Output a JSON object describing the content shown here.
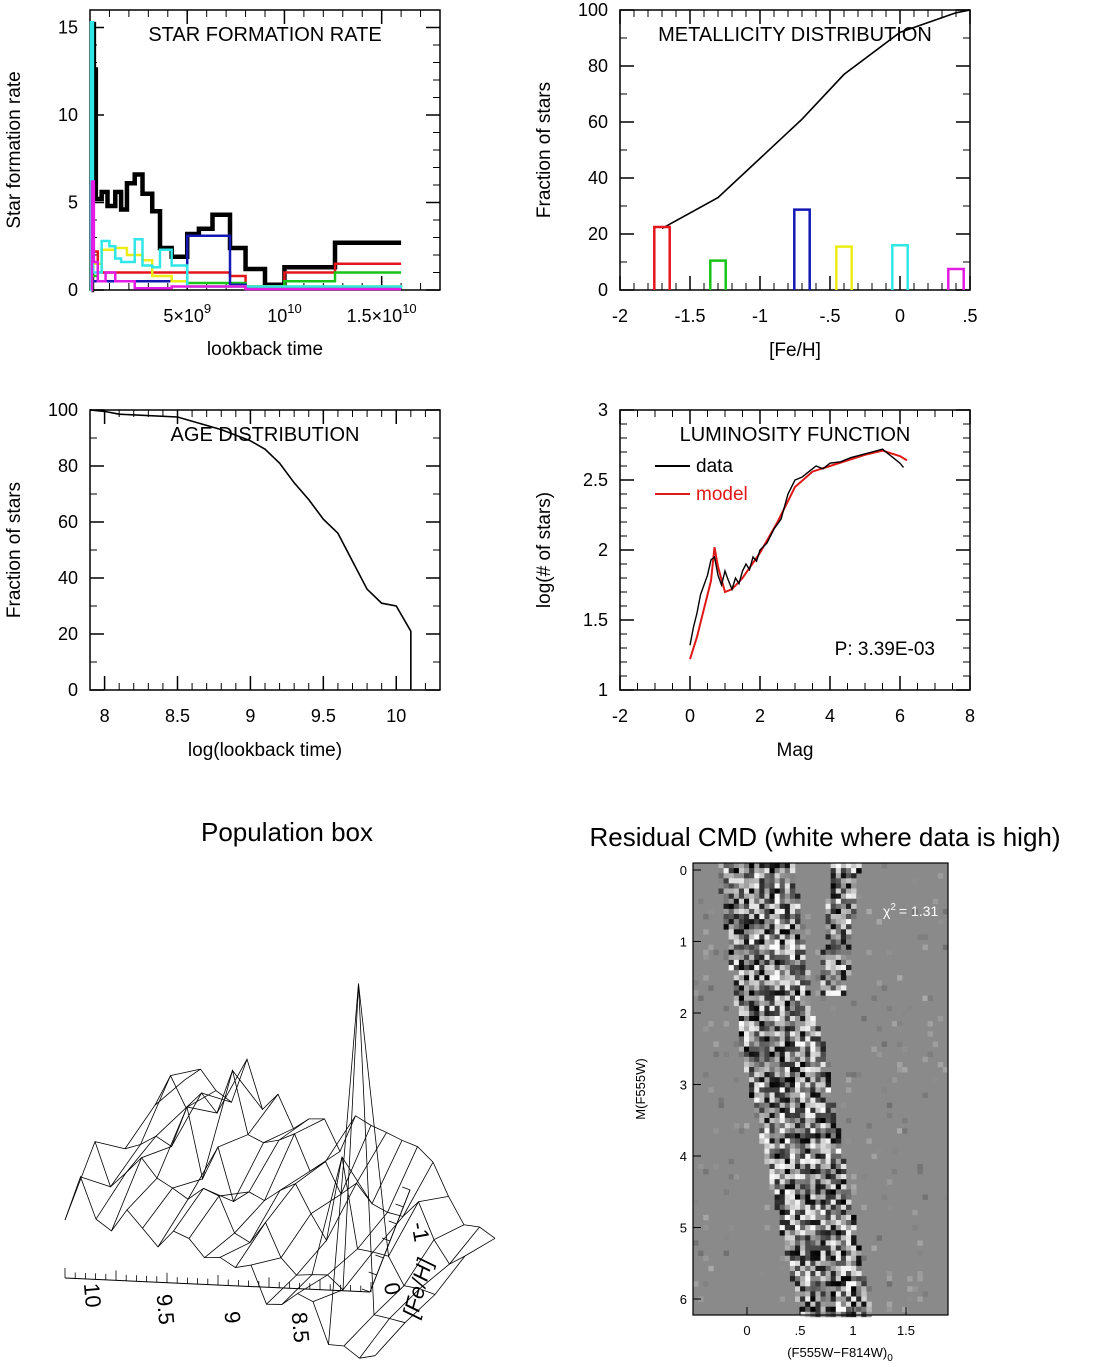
{
  "colors": {
    "black": "#000000",
    "red": "#e4161c",
    "green": "#17c417",
    "blue": "#1419b4",
    "yellow": "#ecec16",
    "cyan": "#30e6e6",
    "magenta": "#e31ce3",
    "model": "#e01818"
  },
  "chart_data": [
    {
      "type": "line",
      "id": "sfr",
      "title": "STAR FORMATION RATE",
      "xlabel": "lookback time",
      "ylabel": "Star formation rate",
      "xlim": [
        0,
        18000000000
      ],
      "ylim": [
        0,
        16
      ],
      "x_tick_labels": [
        {
          "x": 5000000000,
          "base": "5×10",
          "exp": "9"
        },
        {
          "x": 10000000000,
          "base": "10",
          "exp": "10"
        },
        {
          "x": 15000000000,
          "base": "1.5×10",
          "exp": "10"
        }
      ],
      "y_ticks": [
        0,
        5,
        10,
        15
      ],
      "series": [
        {
          "color": "black",
          "width": 4.5,
          "steps": [
            [
              100000000.0,
              15.2
            ],
            [
              200000000.0,
              12.6
            ],
            [
              300000000.0,
              5.2
            ],
            [
              600000000.0,
              5.6
            ],
            [
              900000000.0,
              4.8
            ],
            [
              1300000000.0,
              5.6
            ],
            [
              1600000000.0,
              4.6
            ],
            [
              1900000000.0,
              6.1
            ],
            [
              2300000000.0,
              6.6
            ],
            [
              2700000000.0,
              5.5
            ],
            [
              3200000000.0,
              4.5
            ],
            [
              3600000000.0,
              2.4
            ],
            [
              4200000000.0,
              1.9
            ],
            [
              5000000000.0,
              3.2
            ],
            [
              5600000000.0,
              3.5
            ],
            [
              6300000000.0,
              4.3
            ],
            [
              7200000000.0,
              2.4
            ],
            [
              8000000000.0,
              1.2
            ],
            [
              9000000000.0,
              0.3
            ],
            [
              10000000000.0,
              1.3
            ],
            [
              12600000000.0,
              2.7
            ],
            [
              16000000000.0,
              2.7
            ]
          ]
        },
        {
          "color": "red",
          "width": 2.5,
          "steps": [
            [
              100000000.0,
              2.2
            ],
            [
              400000000.0,
              1.0
            ],
            [
              6300000000.0,
              1.0
            ],
            [
              7200000000.0,
              0.8
            ],
            [
              8000000000.0,
              0.2
            ],
            [
              10000000000.0,
              1.0
            ],
            [
              12600000000.0,
              1.5
            ],
            [
              16000000000.0,
              1.5
            ]
          ]
        },
        {
          "color": "green",
          "width": 2.5,
          "steps": [
            [
              100000000.0,
              0.8
            ],
            [
              400000000.0,
              0.5
            ],
            [
              5000000000.0,
              0.4
            ],
            [
              8000000000.0,
              0.2
            ],
            [
              10000000000.0,
              0.5
            ],
            [
              12600000000.0,
              1.0
            ],
            [
              16000000000.0,
              1.0
            ]
          ]
        },
        {
          "color": "blue",
          "width": 2.5,
          "steps": [
            [
              100000000.0,
              0.5
            ],
            [
              5000000000.0,
              3.1
            ],
            [
              6300000000.0,
              3.1
            ],
            [
              7200000000.0,
              0.3
            ],
            [
              8000000000.0,
              0.1
            ],
            [
              16000000000.0,
              0.1
            ]
          ]
        },
        {
          "color": "yellow",
          "width": 2.5,
          "steps": [
            [
              100000000.0,
              1.5
            ],
            [
              600000000.0,
              2.3
            ],
            [
              1300000000.0,
              2.4
            ],
            [
              1900000000.0,
              2.0
            ],
            [
              2700000000.0,
              1.7
            ],
            [
              3200000000.0,
              0.8
            ],
            [
              4200000000.0,
              0.5
            ],
            [
              5000000000.0,
              0.2
            ],
            [
              16000000000.0,
              0.1
            ]
          ]
        },
        {
          "color": "cyan",
          "width": 2.5,
          "steps": [
            [
              50000000.0,
              15.3
            ],
            [
              150000000.0,
              1.0
            ],
            [
              600000000.0,
              2.8
            ],
            [
              1000000000.0,
              2.5
            ],
            [
              1300000000.0,
              1.8
            ],
            [
              1600000000.0,
              1.6
            ],
            [
              2300000000.0,
              2.9
            ],
            [
              2700000000.0,
              1.4
            ],
            [
              3200000000.0,
              1.3
            ],
            [
              3600000000.0,
              2.3
            ],
            [
              4200000000.0,
              1.4
            ],
            [
              5000000000.0,
              0.2
            ],
            [
              16000000000.0,
              0.1
            ]
          ]
        },
        {
          "color": "magenta",
          "width": 2.5,
          "steps": [
            [
              100000000.0,
              6.2
            ],
            [
              200000000.0,
              1.6
            ],
            [
              400000000.0,
              0.5
            ],
            [
              800000000.0,
              1.0
            ],
            [
              1300000000.0,
              0.5
            ],
            [
              2300000000.0,
              0.1
            ],
            [
              4200000000.0,
              0.2
            ],
            [
              8000000000.0,
              0.05
            ],
            [
              16000000000.0,
              0.05
            ]
          ]
        }
      ]
    },
    {
      "type": "line",
      "id": "metallicity",
      "title": "METALLICITY DISTRIBUTION",
      "xlabel": "[Fe/H]",
      "ylabel": "Fraction of stars",
      "xlim": [
        -2.0,
        0.5
      ],
      "ylim": [
        0,
        100
      ],
      "x_ticks": [
        {
          "v": -2,
          "t": "-2"
        },
        {
          "v": -1.5,
          "t": "-1.5"
        },
        {
          "v": -1,
          "t": "-1"
        },
        {
          "v": -0.5,
          "t": "-.5"
        },
        {
          "v": 0,
          "t": "0"
        },
        {
          "v": 0.5,
          "t": ".5"
        }
      ],
      "y_ticks": [
        0,
        20,
        40,
        60,
        80,
        100
      ],
      "cumulative": {
        "x": [
          -1.7,
          -1.3,
          -0.7,
          -0.4,
          0.0,
          0.4,
          0.5
        ],
        "y": [
          22,
          33,
          61,
          77,
          92,
          99,
          100
        ]
      },
      "bars": [
        {
          "x": -1.7,
          "value": 22.5,
          "color": "red"
        },
        {
          "x": -1.3,
          "value": 10.5,
          "color": "green"
        },
        {
          "x": -0.7,
          "value": 28.7,
          "color": "blue"
        },
        {
          "x": -0.4,
          "value": 15.5,
          "color": "yellow"
        },
        {
          "x": 0.0,
          "value": 16.0,
          "color": "cyan"
        },
        {
          "x": 0.4,
          "value": 7.5,
          "color": "magenta"
        }
      ]
    },
    {
      "type": "line",
      "id": "age",
      "title": "AGE DISTRIBUTION",
      "xlabel": "log(lookback time)",
      "ylabel": "Fraction of stars",
      "xlim": [
        7.9,
        10.3
      ],
      "ylim": [
        0,
        100
      ],
      "x_ticks": [
        {
          "v": 8,
          "t": "8"
        },
        {
          "v": 8.5,
          "t": "8.5"
        },
        {
          "v": 9,
          "t": "9"
        },
        {
          "v": 9.5,
          "t": "9.5"
        },
        {
          "v": 10,
          "t": "10"
        }
      ],
      "y_ticks": [
        0,
        20,
        40,
        60,
        80,
        100
      ],
      "x": [
        7.9,
        8.0,
        8.1,
        8.5,
        8.8,
        9.0,
        9.1,
        9.2,
        9.3,
        9.4,
        9.5,
        9.6,
        9.7,
        9.8,
        9.9,
        10.0,
        10.1,
        10.1
      ],
      "y": [
        100,
        99.5,
        98.5,
        97.5,
        93,
        89,
        86,
        81,
        74,
        68,
        61,
        56,
        46,
        36,
        31,
        30,
        21,
        0
      ]
    },
    {
      "type": "line",
      "id": "luminosity",
      "title": "LUMINOSITY FUNCTION",
      "xlabel": "Mag",
      "ylabel": "log(# of stars)",
      "xlim": [
        -2,
        8
      ],
      "ylim": [
        1,
        3
      ],
      "x_ticks": [
        {
          "v": -2,
          "t": "-2"
        },
        {
          "v": 0,
          "t": "0"
        },
        {
          "v": 2,
          "t": "2"
        },
        {
          "v": 4,
          "t": "4"
        },
        {
          "v": 6,
          "t": "6"
        },
        {
          "v": 8,
          "t": "8"
        }
      ],
      "y_ticks": [
        {
          "v": 1,
          "t": "1"
        },
        {
          "v": 1.5,
          "t": "1.5"
        },
        {
          "v": 2,
          "t": "2"
        },
        {
          "v": 2.5,
          "t": "2.5"
        },
        {
          "v": 3,
          "t": "3"
        }
      ],
      "legend": [
        {
          "name": "data",
          "color": "black"
        },
        {
          "name": "model",
          "color": "model"
        }
      ],
      "annotation": "P: 3.39E-03",
      "data": {
        "x": [
          0.0,
          0.1,
          0.2,
          0.3,
          0.4,
          0.5,
          0.6,
          0.7,
          0.8,
          0.9,
          1.0,
          1.1,
          1.2,
          1.3,
          1.4,
          1.5,
          1.6,
          1.7,
          1.8,
          1.9,
          2.0,
          2.2,
          2.4,
          2.6,
          2.8,
          3.0,
          3.2,
          3.4,
          3.6,
          3.8,
          4.0,
          4.3,
          4.6,
          4.9,
          5.2,
          5.5,
          5.8,
          6.0,
          6.1
        ],
        "y": [
          1.32,
          1.45,
          1.55,
          1.68,
          1.75,
          1.82,
          1.93,
          1.95,
          1.82,
          1.75,
          1.85,
          1.78,
          1.72,
          1.8,
          1.76,
          1.85,
          1.9,
          1.86,
          1.95,
          1.92,
          2.0,
          2.05,
          2.15,
          2.22,
          2.4,
          2.5,
          2.52,
          2.56,
          2.6,
          2.58,
          2.62,
          2.63,
          2.66,
          2.68,
          2.7,
          2.72,
          2.66,
          2.62,
          2.59
        ]
      },
      "model": {
        "x": [
          0.0,
          0.2,
          0.4,
          0.6,
          0.7,
          0.8,
          1.0,
          1.2,
          1.5,
          2.0,
          2.5,
          3.0,
          3.5,
          4.0,
          4.5,
          5.0,
          5.5,
          6.0,
          6.2
        ],
        "y": [
          1.22,
          1.38,
          1.58,
          1.78,
          2.02,
          1.88,
          1.7,
          1.72,
          1.8,
          1.98,
          2.2,
          2.45,
          2.56,
          2.6,
          2.64,
          2.68,
          2.71,
          2.67,
          2.64
        ]
      }
    }
  ],
  "population_box": {
    "title": "Population box",
    "x_ticks": [
      "10",
      "9.5",
      "9",
      "8.5"
    ],
    "y_ticks": [
      "0",
      "-1"
    ],
    "y_label": "[Fe/H]"
  },
  "residual_cmd": {
    "title": "Residual CMD (white where data is high)",
    "ylabel": "M(F555W)",
    "xlabel": "(F555W−F814W)",
    "xlabel_sub": "0",
    "x_ticks": [
      {
        "v": 0,
        "t": "0"
      },
      {
        "v": 0.5,
        "t": ".5"
      },
      {
        "v": 1,
        "t": "1"
      },
      {
        "v": 1.5,
        "t": "1.5"
      }
    ],
    "y_ticks": [
      "0",
      "1",
      "2",
      "3",
      "4",
      "5",
      "6"
    ],
    "chi_label": "χ",
    "chi_sup": "2",
    "chi_value": "= 1.31"
  }
}
